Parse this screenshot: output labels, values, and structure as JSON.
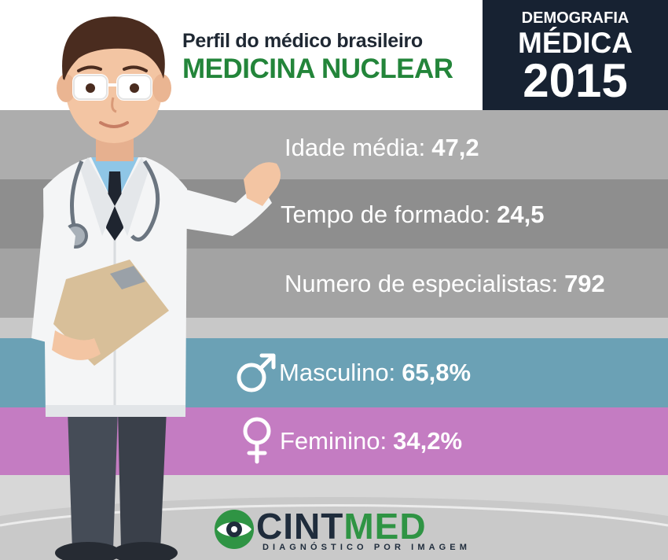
{
  "header": {
    "title": "Perfil do médico brasileiro",
    "subtitle": "MEDICINA NUCLEAR",
    "badge": {
      "line1": "DEMOGRAFIA",
      "line2": "MÉDICA",
      "line3": "2015"
    }
  },
  "stats": [
    {
      "label": "Idade média:",
      "value": "47,2"
    },
    {
      "label": "Tempo de formado:",
      "value": "24,5"
    },
    {
      "label": "Numero de especialistas:",
      "value": "792"
    }
  ],
  "gender": [
    {
      "label": "Masculino:",
      "value": "65,8%",
      "icon": "male-symbol-icon"
    },
    {
      "label": "Feminino:",
      "value": "34,2%",
      "icon": "female-symbol-icon"
    }
  ],
  "logo": {
    "name_part1": "CINT",
    "name_part2": "MED",
    "tagline": "DIAGNÓSTICO POR IMAGEM"
  },
  "colors": {
    "header_green": "#23853a",
    "badge_navy": "#172232",
    "male_band": "#6ba1b5",
    "female_band": "#c47cc2"
  }
}
